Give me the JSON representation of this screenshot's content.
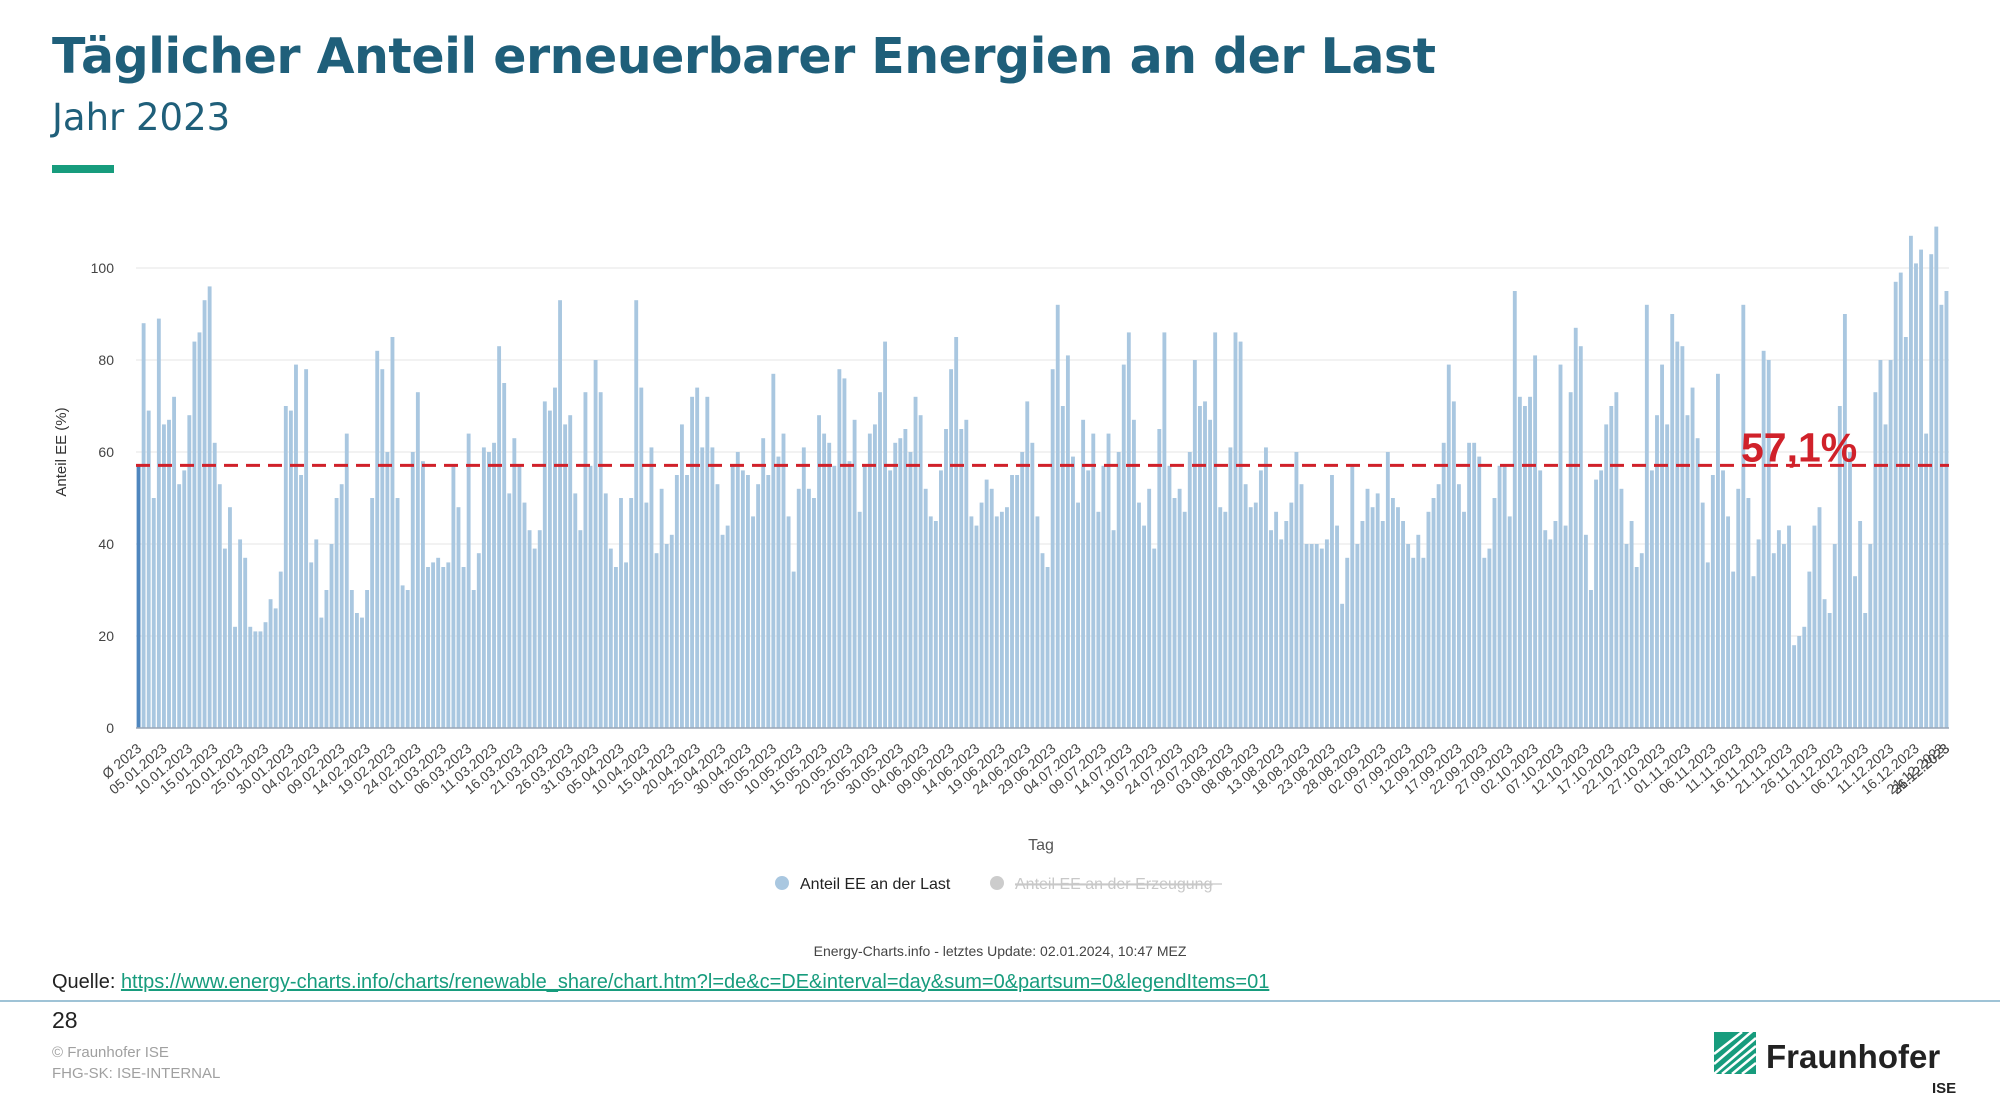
{
  "header": {
    "title": "Täglicher Anteil erneuerbarer Energien an der Last",
    "subtitle": "Jahr 2023"
  },
  "colors": {
    "bar": "#a9c7e0",
    "bar_first": "#4f86be",
    "average_line": "#d0212a",
    "grid": "#e4e4e4",
    "accent": "#179c7d",
    "title": "#1f5f7a"
  },
  "chart_data": {
    "type": "bar",
    "title": "Täglicher Anteil erneuerbarer Energien an der Last",
    "xlabel": "Tag",
    "ylabel": "Anteil EE (%)",
    "ylim": [
      0,
      110
    ],
    "yticks": [
      0,
      20,
      40,
      60,
      80,
      100
    ],
    "grid": true,
    "average": {
      "value": 57.1,
      "label": "57,1%"
    },
    "x_tick_labels": [
      "Ø 2023",
      "05.01.2023",
      "10.01.2023",
      "15.01.2023",
      "20.01.2023",
      "25.01.2023",
      "30.01.2023",
      "04.02.2023",
      "09.02.2023",
      "14.02.2023",
      "19.02.2023",
      "24.02.2023",
      "01.03.2023",
      "06.03.2023",
      "11.03.2023",
      "16.03.2023",
      "21.03.2023",
      "26.03.2023",
      "31.03.2023",
      "05.04.2023",
      "10.04.2023",
      "15.04.2023",
      "20.04.2023",
      "25.04.2023",
      "30.04.2023",
      "05.05.2023",
      "10.05.2023",
      "15.05.2023",
      "20.05.2023",
      "25.05.2023",
      "30.05.2023",
      "04.06.2023",
      "09.06.2023",
      "14.06.2023",
      "19.06.2023",
      "24.06.2023",
      "29.06.2023",
      "04.07.2023",
      "09.07.2023",
      "14.07.2023",
      "19.07.2023",
      "24.07.2023",
      "29.07.2023",
      "03.08.2023",
      "08.08.2023",
      "13.08.2023",
      "18.08.2023",
      "23.08.2023",
      "28.08.2023",
      "02.09.2023",
      "07.09.2023",
      "12.09.2023",
      "17.09.2023",
      "22.09.2023",
      "27.09.2023",
      "02.10.2023",
      "07.10.2023",
      "12.10.2023",
      "17.10.2023",
      "22.10.2023",
      "27.10.2023",
      "01.11.2023",
      "06.11.2023",
      "11.11.2023",
      "16.11.2023",
      "21.11.2023",
      "26.11.2023",
      "01.12.2023",
      "06.12.2023",
      "11.12.2023",
      "16.12.2023",
      "21.12.2023",
      "26.12.2023",
      "31.12.2023"
    ],
    "series": [
      {
        "name": "Anteil EE an der Last",
        "first_value_label": "Ø 2023",
        "values": [
          57.1,
          88,
          69,
          50,
          89,
          66,
          67,
          72,
          53,
          56,
          68,
          84,
          86,
          93,
          96,
          62,
          53,
          39,
          48,
          22,
          41,
          37,
          22,
          21,
          21,
          23,
          28,
          26,
          34,
          70,
          69,
          79,
          55,
          78,
          36,
          41,
          24,
          30,
          40,
          50,
          53,
          64,
          30,
          25,
          24,
          30,
          50,
          82,
          78,
          60,
          85,
          50,
          31,
          30,
          60,
          73,
          58,
          35,
          36,
          37,
          35,
          36,
          57,
          48,
          35,
          64,
          30,
          38,
          61,
          60,
          62,
          83,
          75,
          51,
          63,
          57,
          49,
          43,
          39,
          43,
          71,
          69,
          74,
          93,
          66,
          68,
          51,
          43,
          73,
          57,
          80,
          73,
          51,
          39,
          35,
          50,
          36,
          50,
          93,
          74,
          49,
          61,
          38,
          52,
          40,
          42,
          55,
          66,
          55,
          72,
          74,
          61,
          72,
          61,
          53,
          42,
          44,
          57,
          60,
          56,
          55,
          46,
          53,
          63,
          55,
          77,
          59,
          64,
          46,
          34,
          52,
          61,
          52,
          50,
          68,
          64,
          62,
          57,
          78,
          76,
          58,
          67,
          47,
          57,
          64,
          66,
          73,
          84,
          56,
          62,
          63,
          65,
          60,
          72,
          68,
          52,
          46,
          45,
          56,
          65,
          78,
          85,
          65,
          67,
          46,
          44,
          49,
          54,
          52,
          46,
          47,
          48,
          55,
          55,
          60,
          71,
          62,
          46,
          38,
          35,
          78,
          92,
          70,
          81,
          59,
          49,
          67,
          56,
          64,
          47,
          57,
          64,
          43,
          60,
          79,
          86,
          67,
          49,
          44,
          52,
          39,
          65,
          86,
          57,
          50,
          52,
          47,
          60,
          80,
          70,
          71,
          67,
          86,
          48,
          47,
          61,
          86,
          84,
          53,
          48,
          49,
          56,
          61,
          43,
          47,
          41,
          45,
          49,
          60,
          53,
          40,
          40,
          40,
          39,
          41,
          55,
          44,
          27,
          37,
          57,
          40,
          45,
          52,
          48,
          51,
          45,
          60,
          50,
          48,
          45,
          40,
          37,
          42,
          37,
          47,
          50,
          53,
          62,
          79,
          71,
          53,
          47,
          62,
          62,
          59,
          37,
          39,
          50,
          57,
          57,
          46,
          95,
          72,
          70,
          72,
          81,
          56,
          43,
          41,
          45,
          79,
          44,
          73,
          87,
          83,
          42,
          30,
          54,
          56,
          66,
          70,
          73,
          52,
          40,
          45,
          35,
          38,
          92,
          56,
          68,
          79,
          66,
          90,
          84,
          83,
          68,
          74,
          63,
          49,
          36,
          55,
          77,
          56,
          46,
          34,
          52,
          92,
          50,
          33,
          41,
          82,
          80,
          38,
          43,
          40,
          44,
          18,
          20,
          22,
          34,
          44,
          48,
          28,
          25,
          40,
          70,
          90,
          60,
          33,
          45,
          25,
          40,
          73,
          80,
          66,
          80,
          97,
          99,
          85,
          107,
          101,
          104,
          64,
          103,
          109,
          92,
          95
        ]
      },
      {
        "name": "Anteil EE an der Erzeugung",
        "hidden": true
      }
    ],
    "legend_position": "bottom-center"
  },
  "footer": {
    "credit": "Energy-Charts.info - letztes Update: 02.01.2024, 10:47 MEZ",
    "source_label": "Quelle:",
    "source_url": "https://www.energy-charts.info/charts/renewable_share/chart.htm?l=de&c=DE&interval=day&sum=0&partsum=0&legendItems=01",
    "page_number": "28",
    "copyright": "© Fraunhofer ISE",
    "classification": "FHG-SK: ISE-INTERNAL"
  },
  "logo": {
    "name": "Fraunhofer",
    "sub": "ISE",
    "icon": "fraunhofer-logo-icon"
  }
}
